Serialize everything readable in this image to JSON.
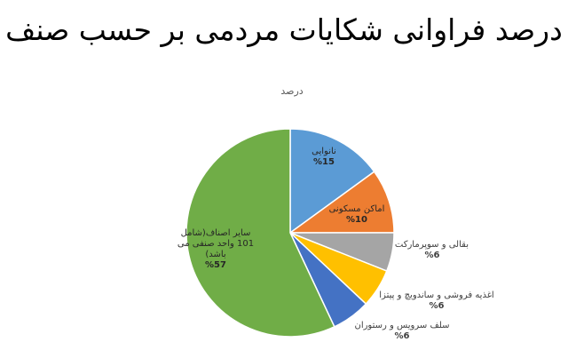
{
  "page": {
    "title": "درصد فراوانی شکایات مردمی بر حسب صنف"
  },
  "chart_data": {
    "type": "pie",
    "title": "درصد",
    "start_angle_deg": 0,
    "direction": "clockwise",
    "slices": [
      {
        "label": "نانوایی",
        "value": 15,
        "value_label": "%15",
        "color": "#5B9BD5"
      },
      {
        "label": "اماکن مسکونی",
        "value": 10,
        "value_label": "%10",
        "color": "#ED7D31"
      },
      {
        "label": "بقالی و سوپرمارکت",
        "value": 6,
        "value_label": "%6",
        "color": "#A5A5A5"
      },
      {
        "label": "اغذیه فروشی و ساندویچ و پیتزا",
        "value": 6,
        "value_label": "%6",
        "color": "#FFC000"
      },
      {
        "label": "سلف سرویس و رستوران",
        "value": 6,
        "value_label": "%6",
        "color": "#4472C4"
      },
      {
        "label": "سایر اصناف(شامل 101 واحد صنفی می باشد)",
        "value": 57,
        "value_label": "%57",
        "color": "#70AD47"
      }
    ]
  }
}
